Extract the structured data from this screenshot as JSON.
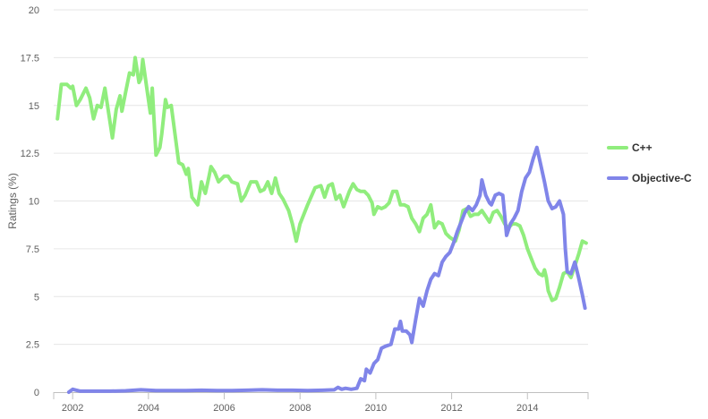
{
  "chart_data": {
    "type": "line",
    "title": "",
    "xlabel": "",
    "ylabel": "Ratings (%)",
    "ylim": [
      0,
      20
    ],
    "xlim": [
      2001.5,
      2015.6
    ],
    "y_ticks": [
      "0",
      "2.5",
      "5",
      "7.5",
      "10",
      "12.5",
      "15",
      "17.5",
      "20"
    ],
    "x_ticks": [
      "2002",
      "2004",
      "2006",
      "2008",
      "2010",
      "2012",
      "2014"
    ],
    "grid": true,
    "legend_position": "right",
    "series": [
      {
        "name": "C++",
        "color": "#90ed7d",
        "points": [
          [
            2001.6,
            14.3
          ],
          [
            2001.7,
            16.1
          ],
          [
            2001.85,
            16.1
          ],
          [
            2001.95,
            15.9
          ],
          [
            2002.0,
            16.0
          ],
          [
            2002.1,
            15.0
          ],
          [
            2002.2,
            15.3
          ],
          [
            2002.35,
            15.9
          ],
          [
            2002.45,
            15.4
          ],
          [
            2002.55,
            14.3
          ],
          [
            2002.65,
            15.0
          ],
          [
            2002.75,
            14.9
          ],
          [
            2002.85,
            15.9
          ],
          [
            2002.95,
            14.6
          ],
          [
            2003.05,
            13.3
          ],
          [
            2003.15,
            14.8
          ],
          [
            2003.25,
            15.5
          ],
          [
            2003.3,
            14.7
          ],
          [
            2003.4,
            15.7
          ],
          [
            2003.5,
            16.7
          ],
          [
            2003.6,
            16.6
          ],
          [
            2003.65,
            17.5
          ],
          [
            2003.75,
            16.2
          ],
          [
            2003.8,
            16.4
          ],
          [
            2003.85,
            17.4
          ],
          [
            2003.95,
            16.0
          ],
          [
            2004.05,
            14.6
          ],
          [
            2004.1,
            15.9
          ],
          [
            2004.2,
            12.4
          ],
          [
            2004.3,
            12.8
          ],
          [
            2004.35,
            13.5
          ],
          [
            2004.45,
            15.3
          ],
          [
            2004.5,
            14.9
          ],
          [
            2004.6,
            15.0
          ],
          [
            2004.7,
            13.5
          ],
          [
            2004.8,
            12.0
          ],
          [
            2004.9,
            11.9
          ],
          [
            2005.0,
            11.4
          ],
          [
            2005.05,
            11.7
          ],
          [
            2005.15,
            10.2
          ],
          [
            2005.3,
            9.8
          ],
          [
            2005.4,
            11.0
          ],
          [
            2005.5,
            10.4
          ],
          [
            2005.6,
            11.3
          ],
          [
            2005.65,
            11.8
          ],
          [
            2005.75,
            11.5
          ],
          [
            2005.85,
            11.0
          ],
          [
            2006.0,
            11.3
          ],
          [
            2006.1,
            11.3
          ],
          [
            2006.2,
            11.0
          ],
          [
            2006.35,
            10.9
          ],
          [
            2006.45,
            10.0
          ],
          [
            2006.55,
            10.3
          ],
          [
            2006.7,
            11.0
          ],
          [
            2006.85,
            11.0
          ],
          [
            2006.95,
            10.5
          ],
          [
            2007.05,
            10.6
          ],
          [
            2007.15,
            11.0
          ],
          [
            2007.25,
            10.4
          ],
          [
            2007.35,
            11.2
          ],
          [
            2007.45,
            10.4
          ],
          [
            2007.55,
            10.1
          ],
          [
            2007.7,
            9.5
          ],
          [
            2007.8,
            8.8
          ],
          [
            2007.9,
            7.9
          ],
          [
            2008.0,
            8.8
          ],
          [
            2008.2,
            9.8
          ],
          [
            2008.4,
            10.7
          ],
          [
            2008.55,
            10.8
          ],
          [
            2008.65,
            10.2
          ],
          [
            2008.75,
            10.8
          ],
          [
            2008.85,
            10.9
          ],
          [
            2008.95,
            10.1
          ],
          [
            2009.05,
            10.3
          ],
          [
            2009.15,
            9.7
          ],
          [
            2009.3,
            10.5
          ],
          [
            2009.4,
            10.9
          ],
          [
            2009.5,
            10.6
          ],
          [
            2009.6,
            10.5
          ],
          [
            2009.7,
            10.5
          ],
          [
            2009.8,
            10.3
          ],
          [
            2009.9,
            9.9
          ],
          [
            2009.95,
            9.3
          ],
          [
            2010.05,
            9.7
          ],
          [
            2010.15,
            9.6
          ],
          [
            2010.25,
            9.7
          ],
          [
            2010.35,
            9.9
          ],
          [
            2010.45,
            10.5
          ],
          [
            2010.55,
            10.5
          ],
          [
            2010.65,
            9.8
          ],
          [
            2010.75,
            9.8
          ],
          [
            2010.85,
            9.7
          ],
          [
            2010.95,
            9.1
          ],
          [
            2011.05,
            8.8
          ],
          [
            2011.15,
            8.4
          ],
          [
            2011.25,
            9.1
          ],
          [
            2011.35,
            9.3
          ],
          [
            2011.45,
            9.8
          ],
          [
            2011.55,
            8.6
          ],
          [
            2011.65,
            8.9
          ],
          [
            2011.75,
            8.8
          ],
          [
            2011.85,
            8.3
          ],
          [
            2011.95,
            8.1
          ],
          [
            2012.1,
            7.9
          ],
          [
            2012.2,
            8.5
          ],
          [
            2012.3,
            9.5
          ],
          [
            2012.4,
            9.6
          ],
          [
            2012.5,
            9.2
          ],
          [
            2012.6,
            9.3
          ],
          [
            2012.7,
            9.3
          ],
          [
            2012.8,
            9.5
          ],
          [
            2012.9,
            9.2
          ],
          [
            2013.0,
            8.9
          ],
          [
            2013.1,
            9.4
          ],
          [
            2013.2,
            9.5
          ],
          [
            2013.3,
            9.2
          ],
          [
            2013.4,
            8.8
          ],
          [
            2013.5,
            8.6
          ],
          [
            2013.6,
            8.8
          ],
          [
            2013.7,
            8.8
          ],
          [
            2013.8,
            8.7
          ],
          [
            2013.9,
            8.2
          ],
          [
            2014.0,
            7.5
          ],
          [
            2014.1,
            7.0
          ],
          [
            2014.2,
            6.5
          ],
          [
            2014.3,
            6.2
          ],
          [
            2014.4,
            6.1
          ],
          [
            2014.45,
            6.4
          ],
          [
            2014.5,
            6.0
          ],
          [
            2014.55,
            5.3
          ],
          [
            2014.65,
            4.8
          ],
          [
            2014.75,
            4.9
          ],
          [
            2014.85,
            5.5
          ],
          [
            2014.95,
            6.2
          ],
          [
            2015.05,
            6.3
          ],
          [
            2015.15,
            6.0
          ],
          [
            2015.25,
            6.6
          ],
          [
            2015.35,
            7.2
          ],
          [
            2015.45,
            7.9
          ],
          [
            2015.55,
            7.8
          ]
        ]
      },
      {
        "name": "Objective-C",
        "color": "#8085e9",
        "points": [
          [
            2001.9,
            0.0
          ],
          [
            2002.0,
            0.15
          ],
          [
            2002.2,
            0.05
          ],
          [
            2002.6,
            0.05
          ],
          [
            2003.0,
            0.05
          ],
          [
            2003.4,
            0.07
          ],
          [
            2003.8,
            0.12
          ],
          [
            2004.2,
            0.08
          ],
          [
            2004.6,
            0.08
          ],
          [
            2005.0,
            0.08
          ],
          [
            2005.4,
            0.1
          ],
          [
            2005.8,
            0.08
          ],
          [
            2006.2,
            0.08
          ],
          [
            2006.6,
            0.1
          ],
          [
            2007.0,
            0.12
          ],
          [
            2007.4,
            0.1
          ],
          [
            2007.8,
            0.1
          ],
          [
            2008.2,
            0.08
          ],
          [
            2008.6,
            0.1
          ],
          [
            2008.9,
            0.12
          ],
          [
            2009.0,
            0.25
          ],
          [
            2009.1,
            0.15
          ],
          [
            2009.2,
            0.2
          ],
          [
            2009.35,
            0.15
          ],
          [
            2009.5,
            0.2
          ],
          [
            2009.6,
            0.7
          ],
          [
            2009.7,
            0.6
          ],
          [
            2009.75,
            1.2
          ],
          [
            2009.85,
            1.0
          ],
          [
            2009.95,
            1.5
          ],
          [
            2010.05,
            1.7
          ],
          [
            2010.15,
            2.3
          ],
          [
            2010.25,
            2.4
          ],
          [
            2010.4,
            2.5
          ],
          [
            2010.5,
            3.3
          ],
          [
            2010.6,
            3.3
          ],
          [
            2010.65,
            3.7
          ],
          [
            2010.7,
            3.2
          ],
          [
            2010.8,
            3.2
          ],
          [
            2010.9,
            3.0
          ],
          [
            2010.95,
            2.6
          ],
          [
            2011.05,
            3.8
          ],
          [
            2011.15,
            4.9
          ],
          [
            2011.25,
            4.5
          ],
          [
            2011.35,
            5.3
          ],
          [
            2011.45,
            5.9
          ],
          [
            2011.55,
            6.2
          ],
          [
            2011.65,
            6.1
          ],
          [
            2011.75,
            6.8
          ],
          [
            2011.85,
            7.1
          ],
          [
            2011.95,
            7.3
          ],
          [
            2012.05,
            7.8
          ],
          [
            2012.15,
            8.4
          ],
          [
            2012.25,
            8.9
          ],
          [
            2012.35,
            9.4
          ],
          [
            2012.45,
            9.7
          ],
          [
            2012.55,
            9.5
          ],
          [
            2012.65,
            9.8
          ],
          [
            2012.75,
            10.3
          ],
          [
            2012.8,
            11.1
          ],
          [
            2012.9,
            10.3
          ],
          [
            2013.0,
            9.9
          ],
          [
            2013.05,
            9.8
          ],
          [
            2013.15,
            10.3
          ],
          [
            2013.25,
            10.4
          ],
          [
            2013.35,
            10.3
          ],
          [
            2013.45,
            8.2
          ],
          [
            2013.55,
            8.8
          ],
          [
            2013.65,
            9.1
          ],
          [
            2013.75,
            9.5
          ],
          [
            2013.85,
            10.5
          ],
          [
            2013.95,
            11.2
          ],
          [
            2014.05,
            11.5
          ],
          [
            2014.15,
            12.2
          ],
          [
            2014.25,
            12.8
          ],
          [
            2014.35,
            11.9
          ],
          [
            2014.45,
            11.0
          ],
          [
            2014.55,
            10.0
          ],
          [
            2014.65,
            9.6
          ],
          [
            2014.75,
            9.7
          ],
          [
            2014.85,
            10.0
          ],
          [
            2014.95,
            9.3
          ],
          [
            2015.0,
            7.5
          ],
          [
            2015.05,
            6.3
          ],
          [
            2015.15,
            6.2
          ],
          [
            2015.25,
            6.8
          ],
          [
            2015.35,
            6.0
          ],
          [
            2015.45,
            5.1
          ],
          [
            2015.52,
            4.4
          ]
        ]
      }
    ]
  }
}
